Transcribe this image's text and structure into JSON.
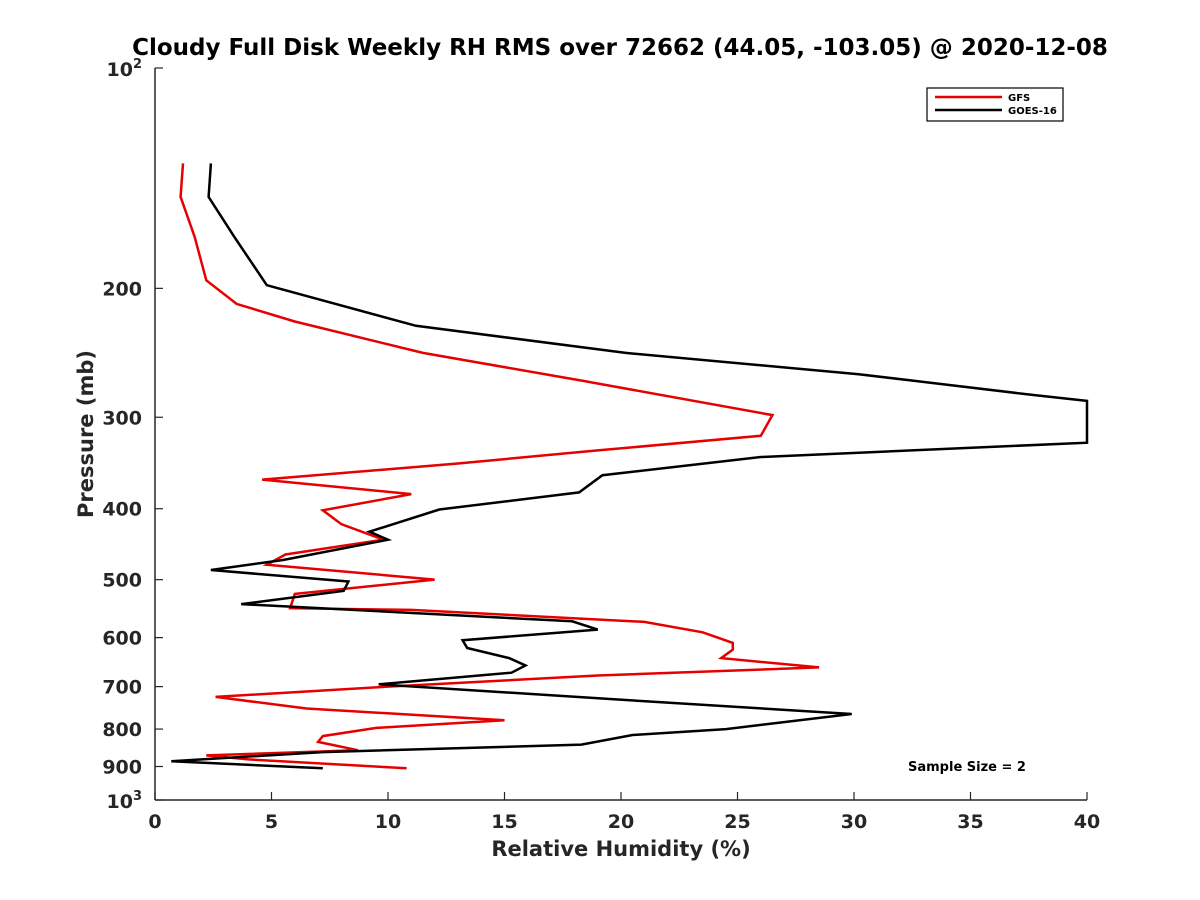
{
  "chart_data": {
    "type": "line",
    "title": "Cloudy Full Disk Weekly RH RMS over 72662 (44.05, -103.05) @ 2020-12-08",
    "xlabel": "Relative Humidity (%)",
    "ylabel": "Pressure (mb)",
    "xlim": [
      0,
      40
    ],
    "ylim": [
      100,
      1000
    ],
    "y_scale": "log",
    "y_reversed": true,
    "x_ticks": [
      "0",
      "5",
      "10",
      "15",
      "20",
      "25",
      "30",
      "35",
      "40"
    ],
    "y_ticks": [
      {
        "value": 100,
        "base": "10",
        "exp": "2"
      },
      {
        "value": 200,
        "label": "200"
      },
      {
        "value": 300,
        "label": "300"
      },
      {
        "value": 400,
        "label": "400"
      },
      {
        "value": 500,
        "label": "500"
      },
      {
        "value": 600,
        "label": "600"
      },
      {
        "value": 700,
        "label": "700"
      },
      {
        "value": 800,
        "label": "800"
      },
      {
        "value": 900,
        "label": "900"
      },
      {
        "value": 1000,
        "base": "10",
        "exp": "3"
      }
    ],
    "legend_position": "top-right",
    "grid": false,
    "annotation": "Sample Size = 2",
    "series": [
      {
        "name": "GFS",
        "color": "#e60000",
        "points": [
          [
            1.2,
            135
          ],
          [
            1.1,
            150
          ],
          [
            1.7,
            170
          ],
          [
            2.2,
            195
          ],
          [
            3.5,
            210
          ],
          [
            6.0,
            222
          ],
          [
            11.5,
            245
          ],
          [
            18.5,
            268
          ],
          [
            26.5,
            298
          ],
          [
            26.0,
            318
          ],
          [
            19.0,
            333
          ],
          [
            13.0,
            347
          ],
          [
            4.6,
            365
          ],
          [
            11.0,
            382
          ],
          [
            7.2,
            402
          ],
          [
            8.0,
            420
          ],
          [
            9.8,
            441
          ],
          [
            5.6,
            462
          ],
          [
            4.8,
            477
          ],
          [
            12.0,
            500
          ],
          [
            6.0,
            523
          ],
          [
            5.8,
            547
          ],
          [
            11.0,
            550
          ],
          [
            21.0,
            571
          ],
          [
            23.5,
            590
          ],
          [
            24.8,
            610
          ],
          [
            24.8,
            623
          ],
          [
            24.3,
            640
          ],
          [
            28.5,
            659
          ],
          [
            19.0,
            676
          ],
          [
            10.0,
            700
          ],
          [
            2.6,
            723
          ],
          [
            6.5,
            750
          ],
          [
            15.0,
            778
          ],
          [
            9.5,
            797
          ],
          [
            7.2,
            818
          ],
          [
            7.0,
            833
          ],
          [
            8.7,
            855
          ],
          [
            2.2,
            869
          ],
          [
            4.0,
            880
          ],
          [
            10.8,
            905
          ]
        ]
      },
      {
        "name": "GOES-16",
        "color": "#000000",
        "points": [
          [
            2.4,
            135
          ],
          [
            2.3,
            150
          ],
          [
            3.4,
            170
          ],
          [
            4.8,
            198
          ],
          [
            11.2,
            225
          ],
          [
            20.2,
            245
          ],
          [
            30.2,
            262
          ],
          [
            37.8,
            280
          ],
          [
            40.0,
            285
          ],
          [
            40.0,
            325
          ],
          [
            26.0,
            340
          ],
          [
            19.2,
            360
          ],
          [
            18.2,
            380
          ],
          [
            12.2,
            401
          ],
          [
            9.2,
            430
          ],
          [
            10.0,
            441
          ],
          [
            5.5,
            470
          ],
          [
            2.4,
            485
          ],
          [
            8.3,
            503
          ],
          [
            8.1,
            518
          ],
          [
            3.7,
            540
          ],
          [
            17.9,
            570
          ],
          [
            19.0,
            585
          ],
          [
            13.2,
            605
          ],
          [
            13.4,
            620
          ],
          [
            15.2,
            640
          ],
          [
            15.9,
            655
          ],
          [
            15.3,
            670
          ],
          [
            9.6,
            695
          ],
          [
            20.2,
            730
          ],
          [
            29.9,
            763
          ],
          [
            24.5,
            800
          ],
          [
            20.5,
            815
          ],
          [
            18.3,
            840
          ],
          [
            7.2,
            860
          ],
          [
            0.7,
            885
          ],
          [
            7.2,
            905
          ]
        ]
      }
    ]
  }
}
